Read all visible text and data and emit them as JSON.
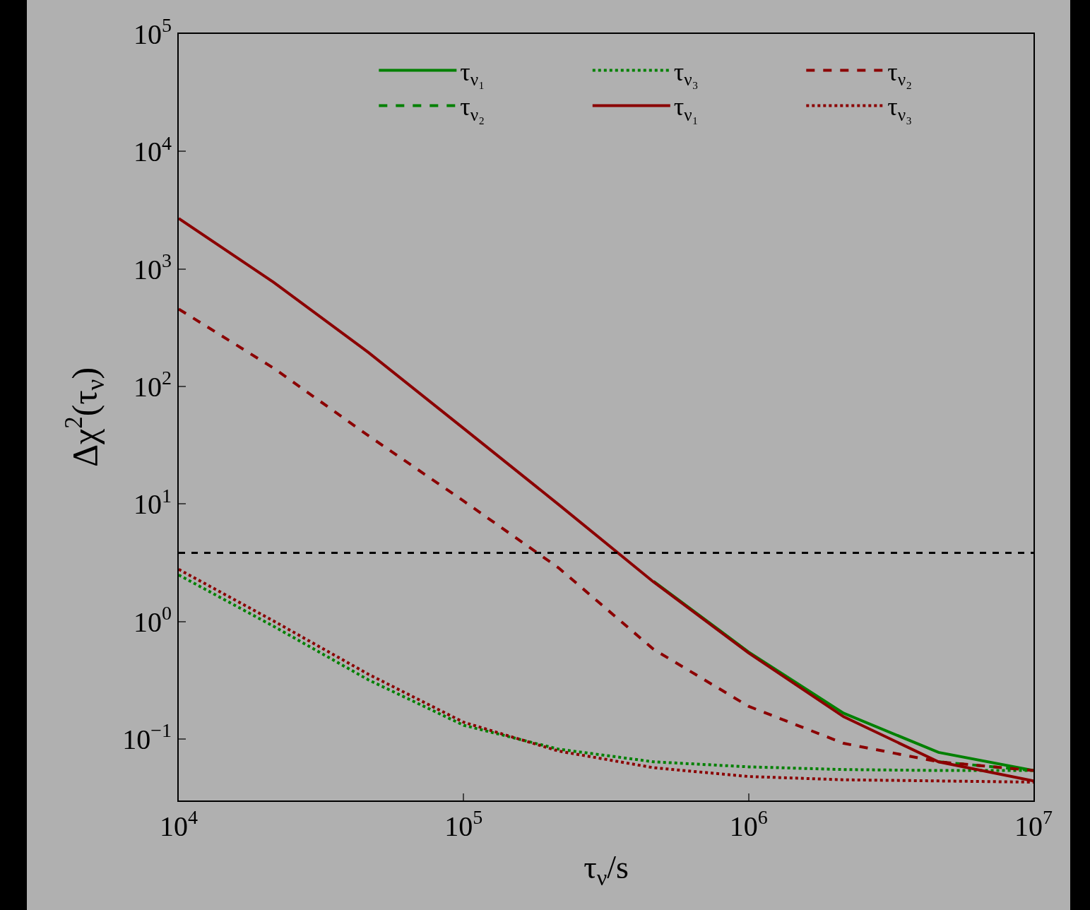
{
  "chart_data": {
    "type": "line",
    "xlabel": "τ$_{ν}$/s",
    "ylabel": "Δχ$^{2}$(τ$_{ν}$)",
    "log": "xy",
    "grid": false,
    "legend": "top right",
    "marker": "none",
    "x": [
      10000,
      21544,
      46416,
      100000,
      215443,
      464159,
      1000000,
      2154435,
      4641589,
      10000000
    ],
    "xlim": [
      10000,
      10000000
    ],
    "ylim": [
      0.03,
      100000
    ],
    "xticks": [
      {
        "value": 10000,
        "label": "10$^{4}$"
      },
      {
        "value": 100000,
        "label": "10$^{5}$"
      },
      {
        "value": 1000000,
        "label": "10$^{6}$"
      },
      {
        "value": 10000000,
        "label": "10$^{7}$"
      }
    ],
    "yticks": [
      {
        "value": 0.1,
        "label": "10$^{−1}$"
      },
      {
        "value": 1,
        "label": "10$^{0}$"
      },
      {
        "value": 10,
        "label": "10$^{1}$"
      },
      {
        "value": 100,
        "label": "10$^{2}$"
      },
      {
        "value": 1000,
        "label": "10$^{3}$"
      },
      {
        "value": 10000,
        "label": "10$^{4}$"
      },
      {
        "value": 100000,
        "label": "10$^{5}$"
      }
    ],
    "ref_lines": [
      {
        "axis": "y",
        "value": 3.84,
        "color": "#000000",
        "line_style": "dashed"
      }
    ],
    "series": [
      {
        "name": "τ$_{ν₁}$",
        "color": "#008000",
        "line_style": "solid",
        "values": [
          null,
          null,
          null,
          null,
          null,
          2.2,
          0.55,
          0.166,
          0.077,
          0.054
        ]
      },
      {
        "name": "τ$_{ν₂}$",
        "color": "#008000",
        "line_style": "dashed",
        "values": [
          null,
          null,
          null,
          null,
          null,
          null,
          null,
          null,
          0.064,
          0.054
        ]
      },
      {
        "name": "τ$_{ν₃}$",
        "color": "#008000",
        "line_style": "dotted",
        "values": [
          2.49,
          0.91,
          0.318,
          0.131,
          0.082,
          0.064,
          0.058,
          0.055,
          0.054,
          0.054
        ]
      },
      {
        "name": "τ$_{ν₁}$",
        "color": "#8b0000",
        "line_style": "solid",
        "values": [
          2690,
          770,
          194,
          44,
          9.9,
          2.17,
          0.54,
          0.155,
          0.064,
          0.044
        ]
      },
      {
        "name": "τ$_{ν₂}$",
        "color": "#8b0000",
        "line_style": "dashed",
        "values": [
          456,
          143,
          38,
          10.6,
          2.86,
          0.58,
          0.19,
          0.092,
          0.064,
          0.054
        ]
      },
      {
        "name": "τ$_{ν₃}$",
        "color": "#8b0000",
        "line_style": "dotted",
        "values": [
          2.78,
          1.01,
          0.355,
          0.139,
          0.079,
          0.057,
          0.048,
          0.045,
          0.044,
          0.043
        ]
      }
    ]
  }
}
